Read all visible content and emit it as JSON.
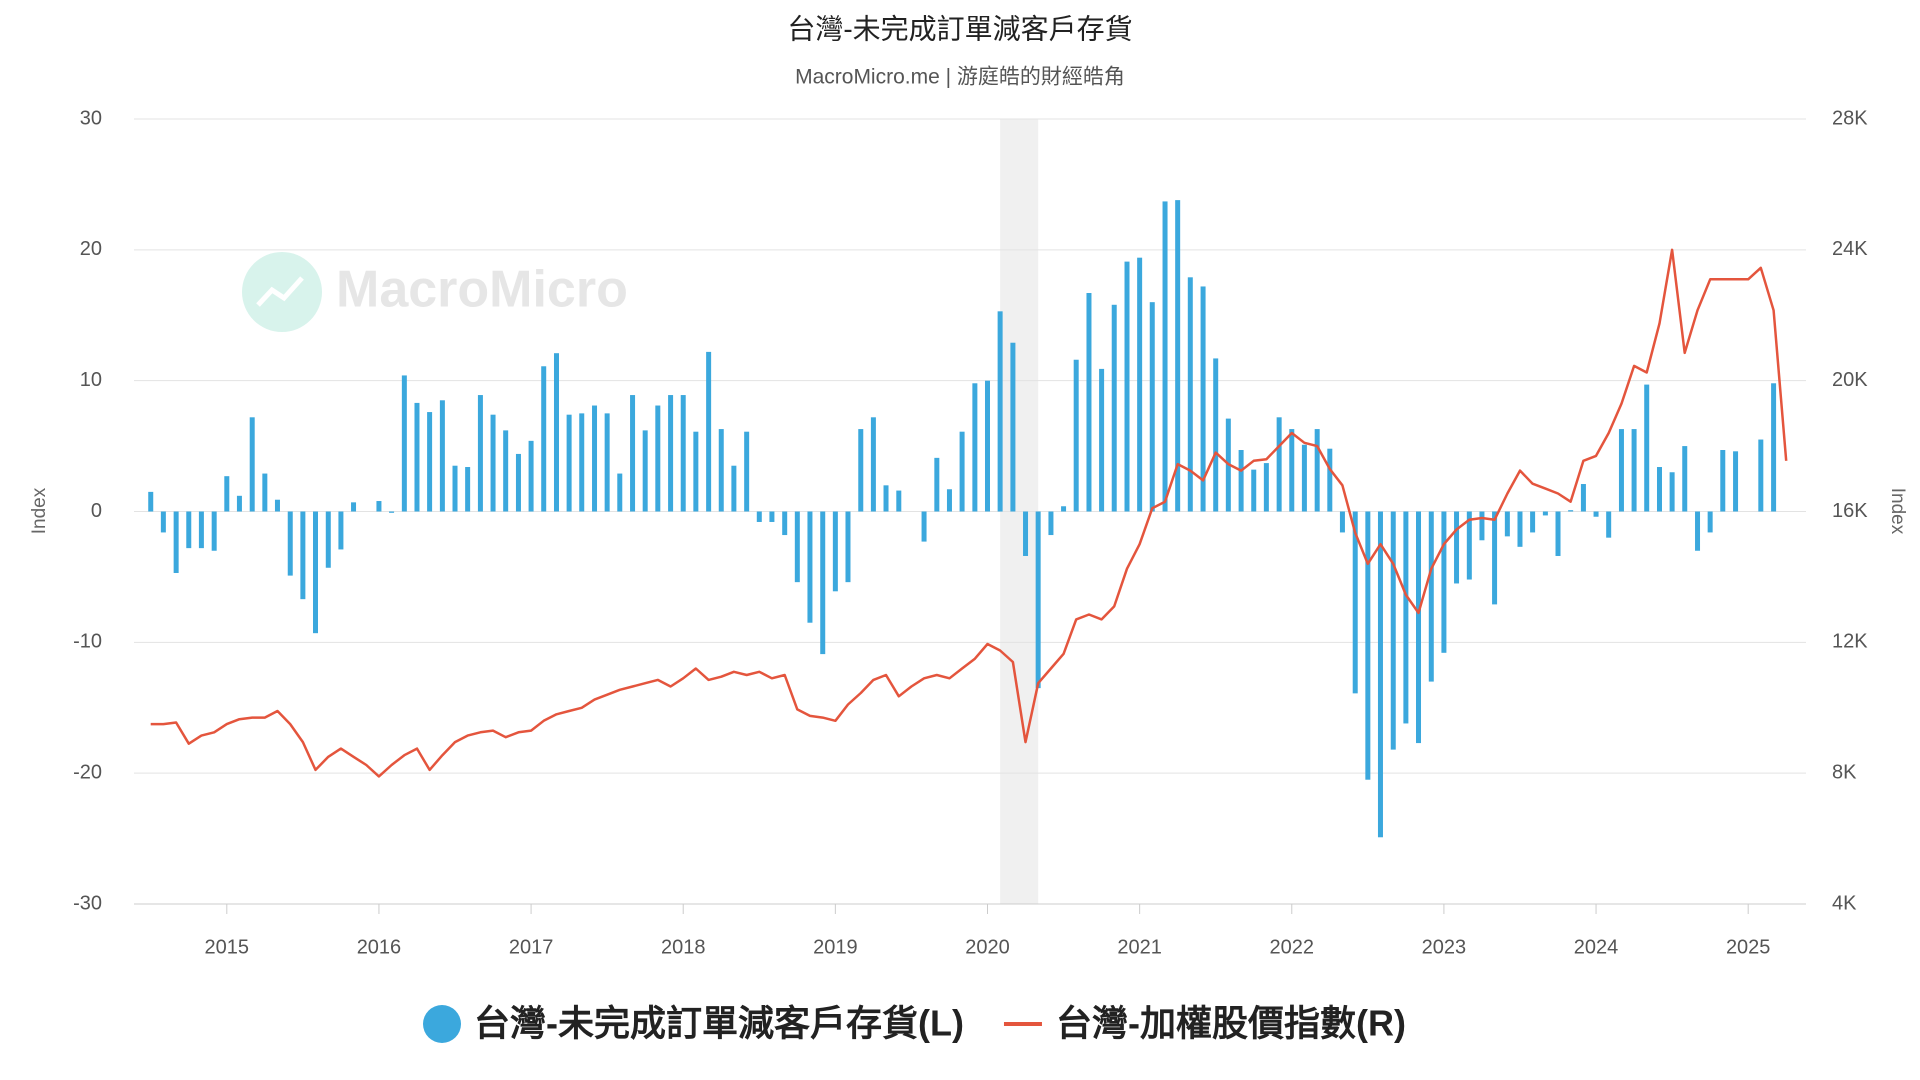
{
  "chart_data": {
    "type": "bar-line",
    "title": "台灣-未完成訂單減客戶存貨",
    "subtitle": "MacroMicro.me | 游庭皓的財經皓角",
    "watermark": "MacroMicro",
    "y_label": "Index",
    "y2_label": "Index",
    "xlim": [
      2014.39,
      2025.38
    ],
    "xticks": [
      2015,
      2016,
      2017,
      2018,
      2019,
      2020,
      2021,
      2022,
      2023,
      2024,
      2025
    ],
    "ylim": [
      -30,
      30
    ],
    "yticks": [
      -30,
      -20,
      -10,
      0,
      10,
      20,
      30
    ],
    "y2lim": [
      4000,
      28000
    ],
    "y2ticks": [
      {
        "value": 4000,
        "label": "4K"
      },
      {
        "value": 8000,
        "label": "8K"
      },
      {
        "value": 12000,
        "label": "12K"
      },
      {
        "value": 16000,
        "label": "16K"
      },
      {
        "value": 20000,
        "label": "20K"
      },
      {
        "value": 24000,
        "label": "24K"
      },
      {
        "value": 28000,
        "label": "28K"
      }
    ],
    "grid": true,
    "legend": "bottom",
    "shade": {
      "from": 2020.083,
      "to": 2020.333,
      "color": "#f0f0f0"
    },
    "x": [
      2014.5,
      2014.583,
      2014.667,
      2014.75,
      2014.833,
      2014.917,
      2015,
      2015.083,
      2015.167,
      2015.25,
      2015.333,
      2015.417,
      2015.5,
      2015.583,
      2015.667,
      2015.75,
      2015.833,
      2015.917,
      2016,
      2016.083,
      2016.167,
      2016.25,
      2016.333,
      2016.417,
      2016.5,
      2016.583,
      2016.667,
      2016.75,
      2016.833,
      2016.917,
      2017,
      2017.083,
      2017.167,
      2017.25,
      2017.333,
      2017.417,
      2017.5,
      2017.583,
      2017.667,
      2017.75,
      2017.833,
      2017.917,
      2018,
      2018.083,
      2018.167,
      2018.25,
      2018.333,
      2018.417,
      2018.5,
      2018.583,
      2018.667,
      2018.75,
      2018.833,
      2018.917,
      2019,
      2019.083,
      2019.167,
      2019.25,
      2019.333,
      2019.417,
      2019.5,
      2019.583,
      2019.667,
      2019.75,
      2019.833,
      2019.917,
      2020,
      2020.083,
      2020.167,
      2020.25,
      2020.333,
      2020.417,
      2020.5,
      2020.583,
      2020.667,
      2020.75,
      2020.833,
      2020.917,
      2021,
      2021.083,
      2021.167,
      2021.25,
      2021.333,
      2021.417,
      2021.5,
      2021.583,
      2021.667,
      2021.75,
      2021.833,
      2021.917,
      2022,
      2022.083,
      2022.167,
      2022.25,
      2022.333,
      2022.417,
      2022.5,
      2022.583,
      2022.667,
      2022.75,
      2022.833,
      2022.917,
      2023,
      2023.083,
      2023.167,
      2023.25,
      2023.333,
      2023.417,
      2023.5,
      2023.583,
      2023.667,
      2023.75,
      2023.833,
      2023.917,
      2024,
      2024.083,
      2024.167,
      2024.25,
      2024.333,
      2024.417,
      2024.5,
      2024.583,
      2024.667,
      2024.75,
      2024.833,
      2024.917,
      2025,
      2025.083,
      2025.167,
      2025.25
    ],
    "series": [
      {
        "name": "台灣-未完成訂單減客戶存貨(L)",
        "type": "bar",
        "color": "#3ba8dd",
        "values": [
          1.5,
          -1.6,
          -4.7,
          -2.8,
          -2.8,
          -3.0,
          2.7,
          1.2,
          7.2,
          2.9,
          0.9,
          -4.9,
          -6.7,
          -9.3,
          -4.3,
          -2.9,
          0.7,
          0,
          0.8,
          -0.1,
          10.4,
          8.3,
          7.6,
          8.5,
          3.5,
          3.4,
          8.9,
          7.4,
          6.2,
          4.4,
          5.4,
          11.1,
          12.1,
          7.4,
          7.5,
          8.1,
          7.5,
          2.9,
          8.9,
          6.2,
          8.1,
          8.9,
          8.9,
          6.1,
          12.2,
          6.3,
          3.5,
          6.1,
          -0.8,
          -0.8,
          -1.8,
          -5.4,
          -8.5,
          -10.9,
          -6.1,
          -5.4,
          6.3,
          7.2,
          2.0,
          1.6,
          0,
          -2.3,
          4.1,
          1.7,
          6.1,
          9.8,
          10.0,
          15.3,
          12.9,
          -3.4,
          -13.5,
          -1.8,
          0.4,
          11.6,
          16.7,
          10.9,
          15.8,
          19.1,
          19.4,
          16.0,
          23.7,
          23.8,
          17.9,
          17.2,
          11.7,
          7.1,
          4.7,
          3.2,
          3.7,
          7.2,
          6.3,
          5.1,
          6.3,
          4.8,
          -1.6,
          -13.9,
          -20.5,
          -24.9,
          -18.2,
          -16.2,
          -17.7,
          -13.0,
          -10.8,
          -5.5,
          -5.2,
          -2.2,
          -7.1,
          -1.9,
          -2.7,
          -1.6,
          -0.3,
          -3.4,
          0.1,
          2.1,
          -0.4,
          -2.0,
          6.3,
          6.3,
          9.7,
          3.4,
          3.0,
          5.0,
          -3.0,
          -1.6,
          4.7,
          4.6,
          0,
          5.5,
          9.8,
          null
        ]
      },
      {
        "name": "台灣-加權股價指數(R)",
        "type": "line",
        "axis": "y2",
        "color": "#e4553d",
        "values": [
          9500,
          9500,
          9550,
          8900,
          9150,
          9250,
          9500,
          9650,
          9700,
          9700,
          9900,
          9500,
          8950,
          8100,
          8500,
          8750,
          8500,
          8250,
          7900,
          8250,
          8550,
          8750,
          8100,
          8550,
          8950,
          9150,
          9250,
          9300,
          9100,
          9250,
          9300,
          9600,
          9800,
          9900,
          10000,
          10250,
          10400,
          10550,
          10650,
          10750,
          10850,
          10650,
          10900,
          11200,
          10850,
          10950,
          11100,
          11000,
          11100,
          10900,
          11000,
          9950,
          9750,
          9700,
          9600,
          10100,
          10450,
          10850,
          11000,
          10350,
          10650,
          10900,
          11000,
          10900,
          11200,
          11500,
          11950,
          11750,
          11400,
          8950,
          10750,
          11200,
          11650,
          12700,
          12850,
          12700,
          13100,
          14250,
          15000,
          16100,
          16300,
          17450,
          17250,
          16950,
          17800,
          17450,
          17250,
          17550,
          17600,
          18000,
          18400,
          18100,
          18000,
          17300,
          16800,
          15350,
          14400,
          15000,
          14400,
          13450,
          12900,
          14250,
          15000,
          15450,
          15750,
          15800,
          15750,
          16550,
          17250,
          16850,
          16700,
          16550,
          16300,
          17550,
          17700,
          18400,
          19300,
          20450,
          20250,
          21750,
          24000,
          20850,
          22150,
          23100,
          23100,
          23100,
          23100,
          23450,
          22150,
          17550
        ]
      }
    ]
  }
}
